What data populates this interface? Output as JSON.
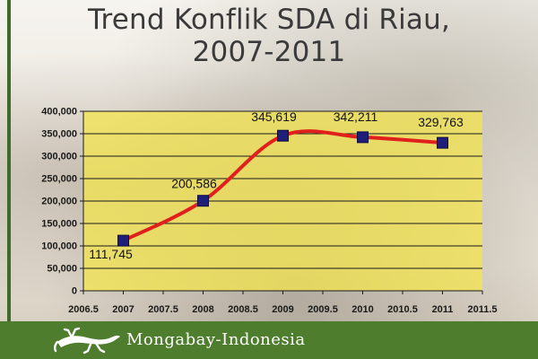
{
  "title_lines": [
    "Trend Konflik SDA di Riau,",
    "2007-2011"
  ],
  "footer": {
    "brand": "Mongabay-Indonesia"
  },
  "colors": {
    "plot_bg": "#f5e64a",
    "line": "#e0201c",
    "marker": "#1f1f7a",
    "footer_bg": "#4e7d2d",
    "title": "#3a3a3a"
  },
  "chart_data": {
    "type": "scatter",
    "title": "Trend Konflik SDA di Riau, 2007-2011",
    "xlabel": "",
    "ylabel": "",
    "xlim": [
      2006.5,
      2011.5
    ],
    "ylim": [
      0,
      400000
    ],
    "x_ticks": [
      "2006.5",
      "2007",
      "2007.5",
      "2008",
      "2008.5",
      "2009",
      "2009.5",
      "2010",
      "2010.5",
      "2011",
      "2011.5"
    ],
    "y_ticks": [
      "0",
      "50,000",
      "100,000",
      "150,000",
      "200,000",
      "250,000",
      "300,000",
      "350,000",
      "400,000"
    ],
    "grid": true,
    "legend": "none",
    "series": [
      {
        "x": [
          2007,
          2008,
          2009,
          2010,
          2011
        ],
        "y": [
          111745,
          200586,
          345619,
          342211,
          329763
        ],
        "labels": [
          "111,745",
          "200,586",
          "345,619",
          "342,211",
          "329,763"
        ],
        "smooth_line": true
      }
    ]
  }
}
